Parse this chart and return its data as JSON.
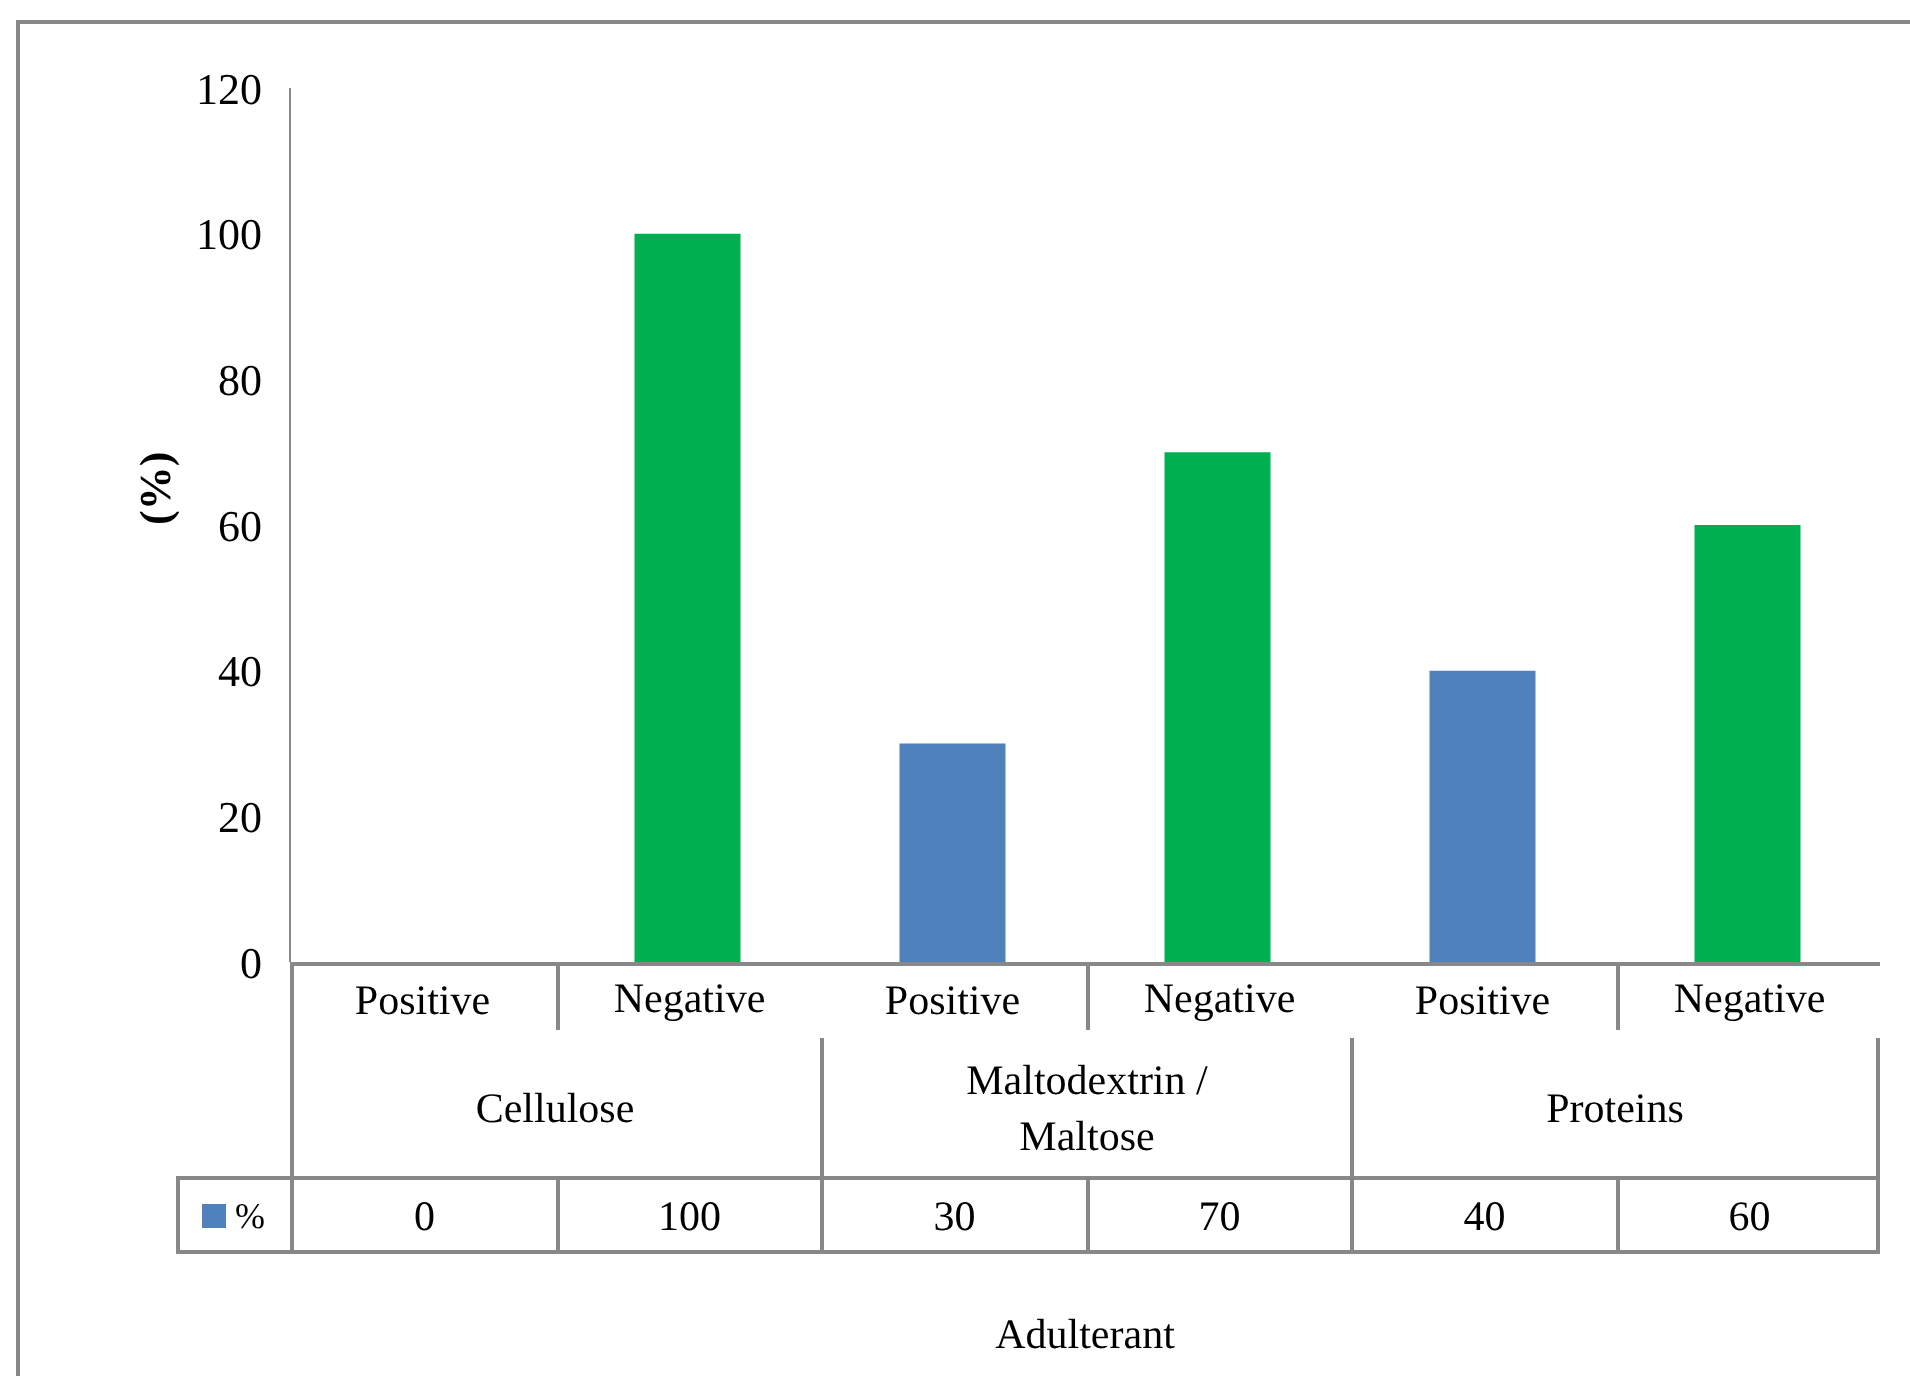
{
  "chart_data": {
    "type": "bar",
    "ylabel": "(%)",
    "categories": [
      "Positive",
      "Negative",
      "Positive",
      "Negative",
      "Positive",
      "Negative"
    ],
    "annotations": [
      "Cellulose",
      "Maltodextrin / Maltose",
      "Proteins",
      "Adulterant"
    ],
    "series": [
      {
        "name": "%",
        "color": "#4f81bd",
        "colors": [
          "#4f81bd",
          "#00b050",
          "#4f81bd",
          "#00b050",
          "#4f81bd",
          "#00b050"
        ],
        "values": [
          0,
          100,
          30,
          70,
          40,
          60
        ]
      }
    ],
    "ylim": [
      0,
      120
    ],
    "yticks": [
      0,
      20,
      40,
      60,
      80,
      100,
      120
    ],
    "data_labels": true,
    "legend": "bottom",
    "grid": false
  }
}
